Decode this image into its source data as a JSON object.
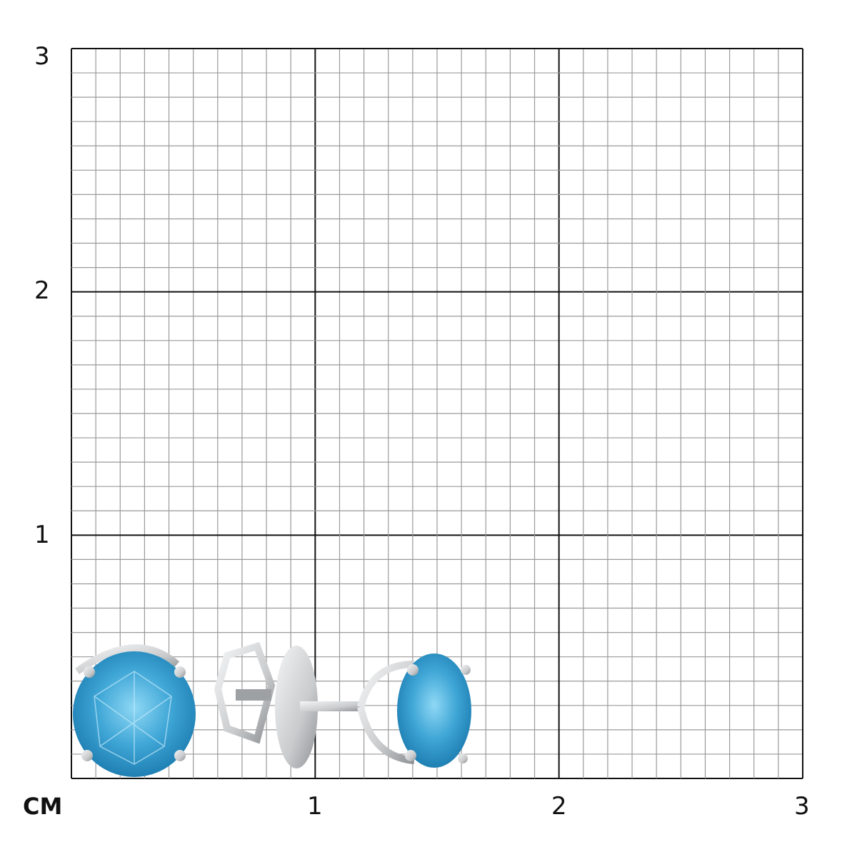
{
  "scale": {
    "unit": "CM",
    "x_ticks": [
      "1",
      "2",
      "3"
    ],
    "y_ticks": [
      "3",
      "2",
      "1"
    ],
    "range_cm": [
      0,
      3
    ],
    "minor_divisions_per_cm": 10
  },
  "product": {
    "type": "stud earrings",
    "stone_color": "#3fa6d6",
    "metal_color": "#d6d8da"
  },
  "colors": {
    "major_grid": "#111111",
    "minor_grid": "#9a9a9a"
  }
}
